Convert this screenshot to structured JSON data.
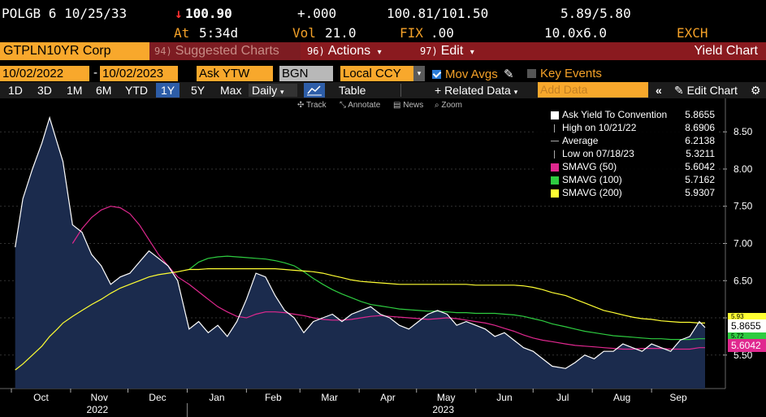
{
  "quote": {
    "ticker": "POLGB 6 10/25/33",
    "price_arrow": "↓",
    "price": "100.90",
    "change": "+.000",
    "bid_ask": "100.81/101.50",
    "yield_bid_ask": "5.89/5.80",
    "at_label": "At",
    "time": "5:34d",
    "vol_label": "Vol",
    "vol": "21.0",
    "fix_label": "FIX",
    "fix": ".00",
    "size": "10.0x6.0",
    "exchange": "EXCH"
  },
  "titlebar": {
    "security": "GTPLN10YR Corp",
    "suggested_num": "94)",
    "suggested_label": "Suggested Charts",
    "actions_num": "96)",
    "actions_label": "Actions",
    "edit_num": "97)",
    "edit_label": "Edit",
    "title": "Yield Chart"
  },
  "controls": {
    "start_date": "10/02/2022",
    "end_date": "10/02/2023",
    "field": "Ask YTW",
    "source": "BGN",
    "currency": "Local CCY",
    "mov_avgs_label": "Mov Avgs",
    "mov_avgs_checked": true,
    "key_events_label": "Key Events",
    "key_events_checked": false
  },
  "periods": {
    "items": [
      "1D",
      "3D",
      "1M",
      "6M",
      "YTD",
      "1Y",
      "5Y",
      "Max"
    ],
    "active": "1Y",
    "frequency": "Daily",
    "table_label": "Table",
    "related_label": "+ Related Data",
    "add_data_placeholder": "Add Data",
    "edit_chart_label": "Edit Chart"
  },
  "chart_tools": {
    "track": "Track",
    "annotate": "Annotate",
    "news": "News",
    "zoom": "Zoom"
  },
  "legend": {
    "ask_label": "Ask Yield To Convention",
    "ask_value": "5.8655",
    "high_label": "High on 10/21/22",
    "high_value": "8.6906",
    "avg_label": "Average",
    "avg_value": "6.2138",
    "low_label": "Low on 07/18/23",
    "low_value": "5.3211",
    "sma50_label": "SMAVG (50)",
    "sma50_value": "5.6042",
    "sma100_label": "SMAVG (100)",
    "sma100_value": "5.7162",
    "sma200_label": "SMAVG (200)",
    "sma200_value": "5.9307"
  },
  "tags": {
    "sma200": "5.93",
    "ask": "5.8655",
    "sma100": "5.72",
    "sma50": "5.6042"
  },
  "colors": {
    "accent": "#f8a82c",
    "titlebar": "#8a1a1f",
    "ask_line": "#ffffff",
    "sma50": "#e0288f",
    "sma100": "#2ecc40",
    "sma200": "#ffff33",
    "area_fill": "#1b2b4d"
  },
  "chart_data": {
    "type": "area",
    "ylim": [
      5.05,
      8.95
    ],
    "y_ticks": [
      "5.50",
      "6.00",
      "6.50",
      "7.00",
      "7.50",
      "8.00",
      "8.50"
    ],
    "month_labels": [
      "Oct",
      "Nov",
      "Dec",
      "Jan",
      "Feb",
      "Mar",
      "Apr",
      "May",
      "Jun",
      "Jul",
      "Aug",
      "Sep"
    ],
    "year_labels": [
      "2022",
      "2023"
    ],
    "x": [
      "2022-10-03",
      "2022-10-07",
      "2022-10-12",
      "2022-10-17",
      "2022-10-21",
      "2022-10-25",
      "2022-10-28",
      "2022-11-02",
      "2022-11-07",
      "2022-11-12",
      "2022-11-17",
      "2022-11-22",
      "2022-11-27",
      "2022-12-02",
      "2022-12-07",
      "2022-12-12",
      "2022-12-17",
      "2022-12-22",
      "2022-12-27",
      "2023-01-02",
      "2023-01-07",
      "2023-01-12",
      "2023-01-17",
      "2023-01-22",
      "2023-01-27",
      "2023-02-01",
      "2023-02-06",
      "2023-02-11",
      "2023-02-16",
      "2023-02-21",
      "2023-02-26",
      "2023-03-03",
      "2023-03-08",
      "2023-03-13",
      "2023-03-18",
      "2023-03-23",
      "2023-03-28",
      "2023-04-02",
      "2023-04-07",
      "2023-04-12",
      "2023-04-17",
      "2023-04-22",
      "2023-04-27",
      "2023-05-02",
      "2023-05-07",
      "2023-05-12",
      "2023-05-17",
      "2023-05-22",
      "2023-05-27",
      "2023-06-01",
      "2023-06-06",
      "2023-06-11",
      "2023-06-16",
      "2023-06-21",
      "2023-06-26",
      "2023-07-01",
      "2023-07-06",
      "2023-07-11",
      "2023-07-18",
      "2023-07-23",
      "2023-07-28",
      "2023-08-02",
      "2023-08-07",
      "2023-08-12",
      "2023-08-17",
      "2023-08-22",
      "2023-08-27",
      "2023-09-01",
      "2023-09-06",
      "2023-09-11",
      "2023-09-16",
      "2023-09-21",
      "2023-09-26",
      "2023-09-29"
    ],
    "series": [
      {
        "name": "Ask Yield To Convention",
        "values": [
          6.95,
          7.6,
          8.0,
          8.35,
          8.69,
          8.35,
          8.1,
          7.25,
          7.15,
          6.85,
          6.7,
          6.45,
          6.55,
          6.6,
          6.75,
          6.9,
          6.8,
          6.7,
          6.5,
          5.85,
          5.95,
          5.8,
          5.9,
          5.75,
          5.95,
          6.25,
          6.6,
          6.55,
          6.3,
          6.1,
          6.0,
          5.8,
          5.95,
          6.0,
          6.05,
          5.95,
          6.05,
          6.1,
          6.15,
          6.05,
          6.0,
          5.9,
          5.85,
          5.95,
          6.05,
          6.1,
          6.05,
          5.9,
          5.95,
          5.9,
          5.85,
          5.75,
          5.8,
          5.7,
          5.6,
          5.55,
          5.45,
          5.35,
          5.32,
          5.4,
          5.5,
          5.45,
          5.55,
          5.55,
          5.65,
          5.6,
          5.55,
          5.65,
          5.6,
          5.55,
          5.7,
          5.75,
          5.95,
          5.87
        ]
      },
      {
        "name": "SMAVG (50)",
        "values": [
          null,
          null,
          null,
          null,
          null,
          null,
          null,
          7.0,
          7.2,
          7.35,
          7.45,
          7.5,
          7.48,
          7.4,
          7.25,
          7.05,
          6.85,
          6.7,
          6.55,
          6.45,
          6.35,
          6.25,
          6.15,
          6.08,
          6.02,
          6.0,
          6.05,
          6.08,
          6.08,
          6.07,
          6.05,
          6.03,
          6.0,
          5.98,
          5.97,
          5.97,
          5.98,
          6.0,
          6.02,
          6.03,
          6.02,
          6.01,
          6.0,
          5.99,
          5.98,
          5.99,
          6.0,
          5.99,
          5.97,
          5.95,
          5.93,
          5.9,
          5.86,
          5.82,
          5.77,
          5.73,
          5.7,
          5.68,
          5.65,
          5.63,
          5.62,
          5.61,
          5.6,
          5.59,
          5.58,
          5.58,
          5.59,
          5.59,
          5.59,
          5.58,
          5.58,
          5.58,
          5.6,
          5.6
        ]
      },
      {
        "name": "SMAVG (100)",
        "values": [
          null,
          null,
          null,
          null,
          null,
          null,
          null,
          null,
          null,
          null,
          null,
          null,
          null,
          null,
          null,
          null,
          null,
          null,
          null,
          6.65,
          6.75,
          6.8,
          6.82,
          6.83,
          6.82,
          6.81,
          6.8,
          6.79,
          6.77,
          6.74,
          6.7,
          6.62,
          6.53,
          6.45,
          6.38,
          6.32,
          6.27,
          6.22,
          6.18,
          6.16,
          6.14,
          6.12,
          6.11,
          6.1,
          6.09,
          6.09,
          6.08,
          6.07,
          6.07,
          6.06,
          6.06,
          6.06,
          6.05,
          6.04,
          6.02,
          5.99,
          5.96,
          5.92,
          5.88,
          5.85,
          5.82,
          5.8,
          5.78,
          5.76,
          5.75,
          5.74,
          5.73,
          5.72,
          5.72,
          5.71,
          5.71,
          5.71,
          5.72,
          5.72
        ]
      },
      {
        "name": "SMAVG (200)",
        "values": [
          5.3,
          5.38,
          5.5,
          5.62,
          5.75,
          5.85,
          5.93,
          6.02,
          6.1,
          6.18,
          6.25,
          6.33,
          6.4,
          6.45,
          6.5,
          6.55,
          6.58,
          6.6,
          6.62,
          6.65,
          6.65,
          6.66,
          6.66,
          6.66,
          6.66,
          6.66,
          6.66,
          6.66,
          6.66,
          6.65,
          6.64,
          6.63,
          6.62,
          6.6,
          6.57,
          6.54,
          6.51,
          6.49,
          6.48,
          6.47,
          6.46,
          6.45,
          6.45,
          6.45,
          6.45,
          6.45,
          6.45,
          6.45,
          6.45,
          6.44,
          6.44,
          6.44,
          6.44,
          6.44,
          6.43,
          6.41,
          6.38,
          6.34,
          6.3,
          6.25,
          6.2,
          6.15,
          6.1,
          6.07,
          6.04,
          6.01,
          5.99,
          5.98,
          5.96,
          5.95,
          5.94,
          5.94,
          5.93,
          5.93
        ]
      }
    ]
  }
}
